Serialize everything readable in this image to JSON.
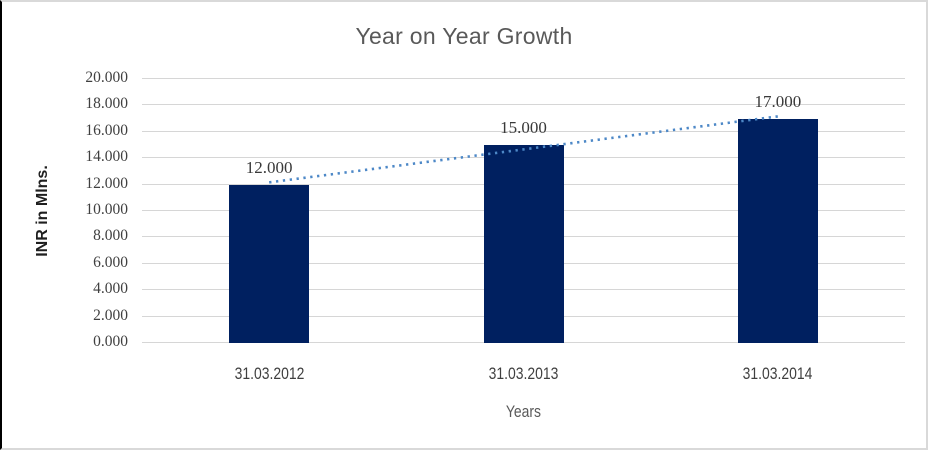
{
  "chart_data": {
    "type": "bar",
    "title": "Year on Year Growth",
    "xlabel": "Years",
    "ylabel": "INR in Mlns.",
    "categories": [
      "31.03.2012",
      "31.03.2013",
      "31.03.2014"
    ],
    "values": [
      12,
      15,
      17
    ],
    "data_labels": [
      "12.000",
      "15.000",
      "17.000"
    ],
    "ylim": [
      0,
      20
    ],
    "ytick_step": 2,
    "yticks": [
      "0.000",
      "2.000",
      "4.000",
      "6.000",
      "8.000",
      "10.000",
      "12.000",
      "14.000",
      "16.000",
      "18.000",
      "20.000"
    ],
    "grid": true,
    "legend": "none",
    "trendline": {
      "type": "linear",
      "style": "dotted",
      "start_value": 12.167,
      "end_value": 17.167
    },
    "colors": {
      "bar": "#002060",
      "trendline": "#4d88c7",
      "gridline": "#d6d6d6",
      "frame_border": "#d9d9d9",
      "left_edge": "#000000",
      "title_text": "#595959",
      "tick_text": "#3f3f3f",
      "category_text": "#3f3f3f",
      "data_label_text": "#393939",
      "y_axis_title_text": "#1f1f1f",
      "x_axis_title_text": "#595959"
    }
  }
}
